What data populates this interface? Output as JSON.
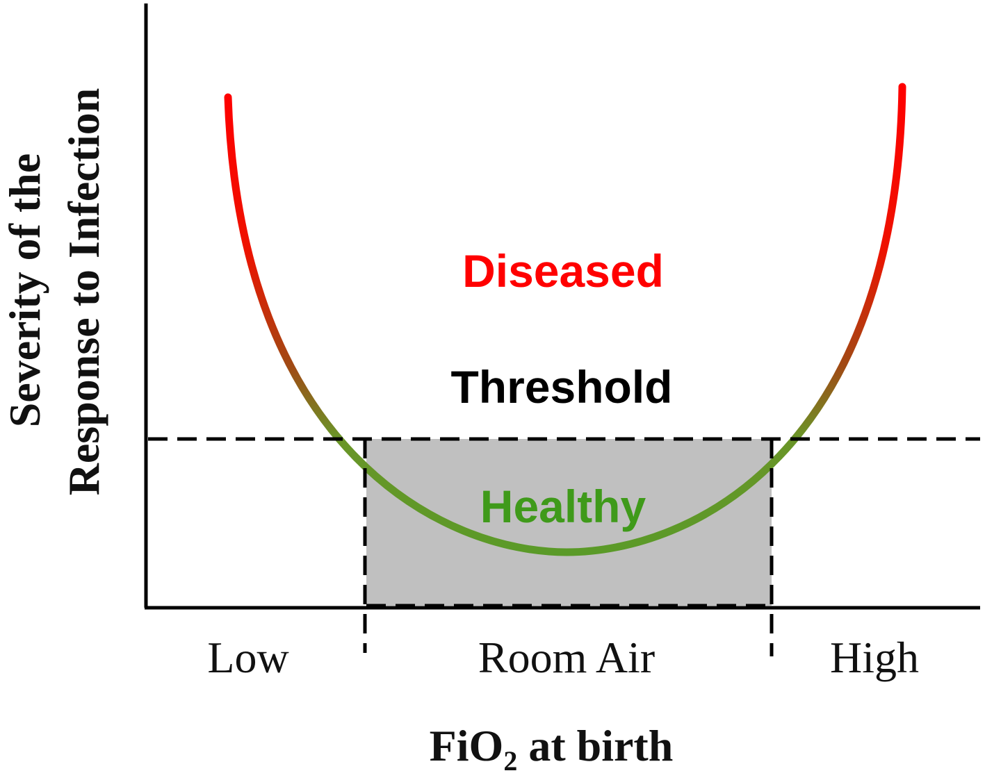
{
  "y_axis": {
    "line1": "Severity of the",
    "line2": "Response to Infection"
  },
  "x_axis": {
    "label_main": "FiO",
    "label_sub": "2",
    "label_rest": " at birth",
    "categories": [
      "Low",
      "Room Air",
      "High"
    ]
  },
  "zones": {
    "diseased": "Diseased",
    "threshold": "Threshold",
    "healthy": "Healthy"
  },
  "colors": {
    "diseased": "#ff0000",
    "healthy": "#5a9a28",
    "healthy_text": "#3f9a1a",
    "threshold_text": "#000000",
    "box_fill": "#c0c0c0"
  }
}
